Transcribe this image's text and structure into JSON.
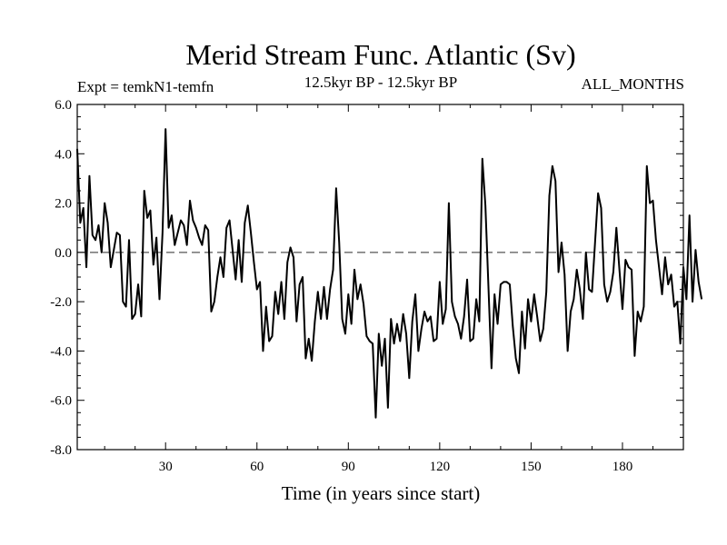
{
  "chart_data": {
    "type": "line",
    "title": "Merid Stream Func. Atlantic (Sv)",
    "subtitle": "12.5kyr BP - 12.5kyr BP",
    "left_label": "Expt = temkN1-temfn",
    "right_label": "ALL_MONTHS",
    "xlabel": "Time (in years since start)",
    "ylabel": "",
    "xlim": [
      1,
      200
    ],
    "ylim": [
      -8,
      6
    ],
    "x_ticks": [
      {
        "value": 30,
        "label": "30"
      },
      {
        "value": 60,
        "label": "60"
      },
      {
        "value": 90,
        "label": "90"
      },
      {
        "value": 120,
        "label": "120"
      },
      {
        "value": 150,
        "label": "150"
      },
      {
        "value": 180,
        "label": "180"
      }
    ],
    "y_ticks": [
      {
        "value": 6,
        "label": "6.0"
      },
      {
        "value": 4,
        "label": "4.0"
      },
      {
        "value": 2,
        "label": "2.0"
      },
      {
        "value": 0,
        "label": "0.0"
      },
      {
        "value": -2,
        "label": "-2.0"
      },
      {
        "value": -4,
        "label": "-4.0"
      },
      {
        "value": -6,
        "label": "-6.0"
      },
      {
        "value": -8,
        "label": "-8.0"
      }
    ],
    "reference_line": 0,
    "grid": false,
    "series": [
      {
        "name": "temkN1-temfn",
        "x_start": 1,
        "x_step": 1,
        "values": [
          4.2,
          1.2,
          1.8,
          -0.6,
          3.1,
          0.7,
          0.5,
          1.1,
          0.0,
          2.0,
          1.2,
          -0.6,
          0.1,
          0.8,
          0.7,
          -2.0,
          -2.2,
          0.5,
          -2.7,
          -2.5,
          -1.3,
          -2.6,
          2.5,
          1.4,
          1.7,
          -0.5,
          0.6,
          -1.9,
          0.8,
          5.0,
          1.0,
          1.5,
          0.3,
          0.8,
          1.3,
          1.1,
          0.3,
          2.1,
          1.3,
          1.0,
          0.6,
          0.3,
          1.1,
          0.9,
          -2.4,
          -2.0,
          -1.0,
          -0.2,
          -1.0,
          1.0,
          1.3,
          0.1,
          -1.1,
          0.5,
          -1.2,
          1.2,
          1.9,
          0.8,
          -0.4,
          -1.5,
          -1.2,
          -4.0,
          -2.2,
          -3.6,
          -3.4,
          -1.6,
          -2.5,
          -1.2,
          -2.7,
          -0.4,
          0.2,
          -0.2,
          -2.8,
          -1.3,
          -1.0,
          -4.3,
          -3.5,
          -4.4,
          -2.8,
          -1.6,
          -2.7,
          -1.4,
          -2.7,
          -1.5,
          -0.7,
          2.6,
          0.4,
          -2.7,
          -3.3,
          -1.7,
          -2.9,
          -0.7,
          -1.9,
          -1.3,
          -2.1,
          -3.4,
          -3.6,
          -3.7,
          -6.7,
          -3.3,
          -4.6,
          -3.5,
          -6.3,
          -2.7,
          -3.7,
          -2.9,
          -3.6,
          -2.5,
          -3.3,
          -5.1,
          -2.8,
          -1.7,
          -4.0,
          -3.1,
          -2.4,
          -2.8,
          -2.6,
          -3.6,
          -3.5,
          -1.2,
          -2.9,
          -2.3,
          2.0,
          -2.0,
          -2.6,
          -2.9,
          -3.5,
          -2.6,
          -1.1,
          -3.6,
          -3.5,
          -1.9,
          -2.8,
          3.8,
          1.9,
          -1.4,
          -4.7,
          -1.7,
          -2.9,
          -1.3,
          -1.2,
          -1.2,
          -1.3,
          -3.0,
          -4.3,
          -4.9,
          -2.4,
          -3.9,
          -1.9,
          -2.8,
          -1.7,
          -2.6,
          -3.6,
          -3.1,
          -1.6,
          2.3,
          3.5,
          2.9,
          -0.8,
          0.4,
          -0.9,
          -4.0,
          -2.4,
          -1.9,
          -0.7,
          -1.5,
          -2.7,
          0.0,
          -1.5,
          -1.6,
          0.4,
          2.4,
          1.8,
          -1.3,
          -2.0,
          -1.6,
          -0.8,
          1.0,
          -0.7,
          -2.3,
          -0.3,
          -0.6,
          -0.7,
          -4.2,
          -2.4,
          -2.8,
          -2.2,
          3.5,
          2.0,
          2.1,
          0.5,
          -0.6,
          -1.7,
          -0.2,
          -1.3,
          -0.9,
          -2.2,
          -2.0,
          -3.7,
          -0.6,
          -1.9,
          1.5,
          -2.0,
          0.1,
          -1.2,
          -1.9
        ]
      }
    ]
  }
}
